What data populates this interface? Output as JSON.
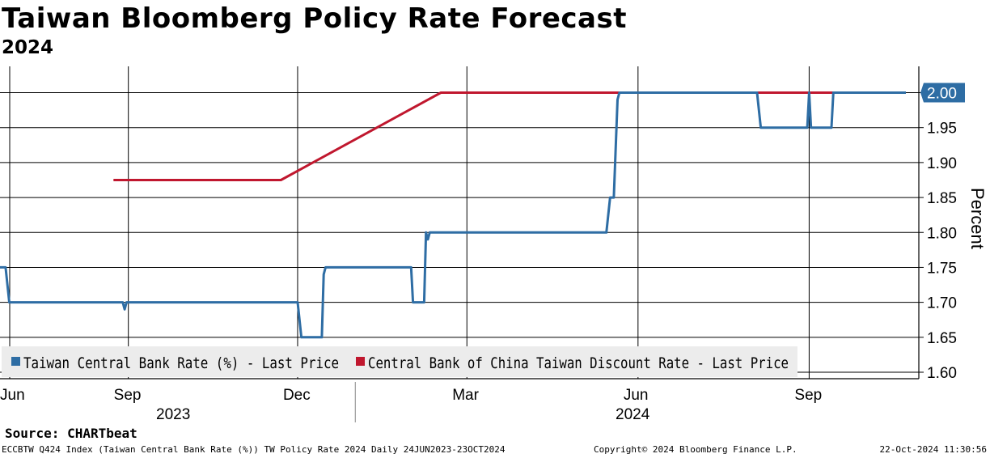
{
  "header": {
    "title": "Taiwan Bloomberg Policy Rate Forecast",
    "subtitle": "2024"
  },
  "source": "Source: CHARTbeat",
  "footer": {
    "left": "ECCBTW Q424 Index (Taiwan Central Bank Rate (%)) TW Policy Rate 2024  Daily 24JUN2023-23OCT2024",
    "copyright": "Copyright© 2024 Bloomberg Finance L.P.",
    "timestamp": "22-Oct-2024 11:30:56"
  },
  "chart_data": {
    "type": "line",
    "title": "Taiwan Bloomberg Policy Rate Forecast",
    "subtitle": "2024",
    "ylabel": "Percent",
    "ylim": [
      1.6,
      2.0
    ],
    "yticks": [
      "1.60",
      "1.65",
      "1.70",
      "1.75",
      "1.80",
      "1.85",
      "1.90",
      "1.95",
      "2.00"
    ],
    "x_range": [
      "2023-06-24",
      "2024-10-23"
    ],
    "month_ticks": [
      {
        "date": "2023-06-24",
        "label": "Jun"
      },
      {
        "date": "2023-09-01",
        "label": "Sep"
      },
      {
        "date": "2023-12-01",
        "label": "Dec"
      },
      {
        "date": "2024-03-01",
        "label": "Mar"
      },
      {
        "date": "2024-06-01",
        "label": "Jun"
      },
      {
        "date": "2024-09-01",
        "label": "Sep"
      }
    ],
    "year_labels": [
      "2023",
      "2024"
    ],
    "year_boundary": "2024-01-01",
    "grid": true,
    "legend_position": "bottom-left",
    "last_value_label": "2.00",
    "series": [
      {
        "name": "Taiwan Central Bank Rate (%) - Last Price",
        "color": "#2e6da4",
        "points": [
          [
            "2023-06-24",
            1.75
          ],
          [
            "2023-06-27",
            1.75
          ],
          [
            "2023-06-29",
            1.7
          ],
          [
            "2023-08-29",
            1.7
          ],
          [
            "2023-08-30",
            1.69
          ],
          [
            "2023-08-31",
            1.7
          ],
          [
            "2023-12-01",
            1.7
          ],
          [
            "2023-12-03",
            1.65
          ],
          [
            "2023-12-14",
            1.65
          ],
          [
            "2023-12-15",
            1.74
          ],
          [
            "2023-12-16",
            1.75
          ],
          [
            "2024-01-31",
            1.75
          ],
          [
            "2024-02-01",
            1.7
          ],
          [
            "2024-02-07",
            1.7
          ],
          [
            "2024-02-08",
            1.8
          ],
          [
            "2024-02-09",
            1.79
          ],
          [
            "2024-02-10",
            1.8
          ],
          [
            "2024-05-15",
            1.8
          ],
          [
            "2024-05-17",
            1.85
          ],
          [
            "2024-05-19",
            1.85
          ],
          [
            "2024-05-21",
            1.99
          ],
          [
            "2024-05-22",
            2.0
          ],
          [
            "2024-08-04",
            2.0
          ],
          [
            "2024-08-06",
            1.95
          ],
          [
            "2024-08-31",
            1.95
          ],
          [
            "2024-09-01",
            2.0
          ],
          [
            "2024-09-02",
            1.95
          ],
          [
            "2024-09-13",
            1.95
          ],
          [
            "2024-09-14",
            2.0
          ],
          [
            "2024-10-23",
            2.0
          ]
        ]
      },
      {
        "name": "Central Bank of China Taiwan Discount Rate - Last Price",
        "color": "#c0172e",
        "points": [
          [
            "2023-08-24",
            1.875
          ],
          [
            "2023-11-22",
            1.875
          ],
          [
            "2024-02-16",
            2.0
          ],
          [
            "2024-09-17",
            2.0
          ]
        ]
      }
    ]
  }
}
